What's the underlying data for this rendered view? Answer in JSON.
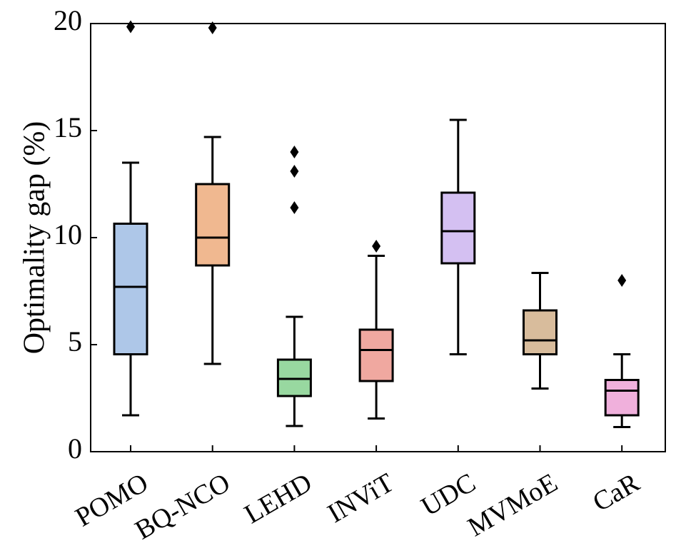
{
  "chart_data": {
    "type": "box",
    "title": "",
    "xlabel": "",
    "ylabel": "Optimality gap (%)",
    "ylim": [
      0,
      20
    ],
    "yticks": [
      0,
      5,
      10,
      15,
      20
    ],
    "ytick_labels": [
      "0",
      "5",
      "10",
      "15",
      "20"
    ],
    "grid": false,
    "categories": [
      "POMO",
      "BQ-NCO",
      "LEHD",
      "INViT",
      "UDC",
      "MVMoE",
      "CaR"
    ],
    "boxes": [
      {
        "name": "POMO",
        "color": "#aec7e8",
        "whisker_low": 1.7,
        "q1": 4.55,
        "median": 7.7,
        "q3": 10.65,
        "whisker_high": 13.5,
        "outliers": [
          19.85
        ]
      },
      {
        "name": "BQ-NCO",
        "color": "#f0b890",
        "whisker_low": 4.1,
        "q1": 8.7,
        "median": 10.0,
        "q3": 12.5,
        "whisker_high": 14.7,
        "outliers": [
          19.8
        ]
      },
      {
        "name": "LEHD",
        "color": "#98d8a0",
        "whisker_low": 1.2,
        "q1": 2.6,
        "median": 3.4,
        "q3": 4.3,
        "whisker_high": 6.3,
        "outliers": [
          11.4,
          13.1,
          14.0
        ]
      },
      {
        "name": "INViT",
        "color": "#f0a8a0",
        "whisker_low": 1.55,
        "q1": 3.3,
        "median": 4.75,
        "q3": 5.7,
        "whisker_high": 9.15,
        "outliers": [
          9.6
        ]
      },
      {
        "name": "UDC",
        "color": "#d4c0f2",
        "whisker_low": 4.55,
        "q1": 8.8,
        "median": 10.3,
        "q3": 12.1,
        "whisker_high": 15.5,
        "outliers": []
      },
      {
        "name": "MVMoE",
        "color": "#d8bc9c",
        "whisker_low": 2.95,
        "q1": 4.55,
        "median": 5.2,
        "q3": 6.6,
        "whisker_high": 8.35,
        "outliers": []
      },
      {
        "name": "CaR",
        "color": "#f0b0dc",
        "whisker_low": 1.15,
        "q1": 1.7,
        "median": 2.85,
        "q3": 3.35,
        "whisker_high": 4.55,
        "outliers": [
          8.0
        ]
      }
    ]
  }
}
